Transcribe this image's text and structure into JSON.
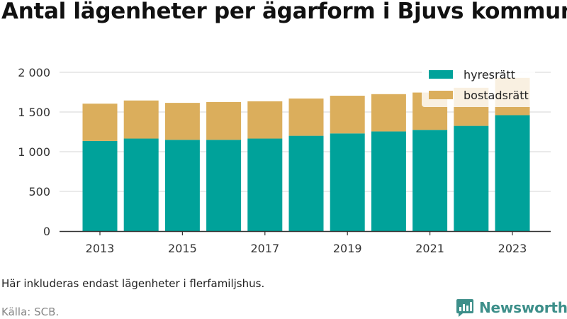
{
  "title": "Antal lägenheter per ägarform i Bjuvs kommun",
  "note": "Här inkluderas endast lägenheter i flerfamiljshus.",
  "source": "Källa: SCB.",
  "brand": {
    "name": "Newsworthy",
    "icon": "newsworthy-logo-icon",
    "color": "#3d8f8a"
  },
  "chart_data": {
    "type": "bar",
    "stacked": true,
    "categories": [
      "2013",
      "2014",
      "2015",
      "2016",
      "2017",
      "2018",
      "2019",
      "2020",
      "2021",
      "2022",
      "2023"
    ],
    "series": [
      {
        "name": "hyresrätt",
        "color": "#00a29a",
        "values": [
          1135,
          1165,
          1150,
          1150,
          1165,
          1200,
          1230,
          1255,
          1275,
          1325,
          1460
        ]
      },
      {
        "name": "bostadsrätt",
        "color": "#dbae5c",
        "values": [
          470,
          480,
          465,
          475,
          470,
          470,
          475,
          470,
          470,
          480,
          470
        ]
      }
    ],
    "ylim": [
      0,
      2000
    ],
    "yticks": [
      0,
      500,
      1000,
      1500,
      2000
    ],
    "ytick_labels": [
      "0",
      "500",
      "1 000",
      "1 500",
      "2 000"
    ],
    "xtick_labels": [
      "2013",
      "2015",
      "2017",
      "2019",
      "2021",
      "2023"
    ],
    "grid": true,
    "legend": "top-right"
  }
}
